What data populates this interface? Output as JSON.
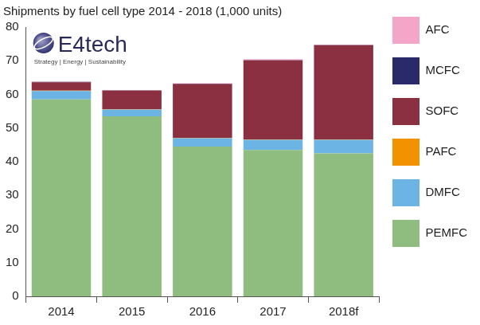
{
  "chart_data": {
    "type": "bar",
    "title": "Shipments by fuel cell type 2014 - 2018 (1,000 units)",
    "annotations": [
      "E4tech",
      "Strategy | Energy | Sustainability"
    ],
    "categories": [
      "2014",
      "2015",
      "2016",
      "2017",
      "2018f"
    ],
    "series": [
      {
        "name": "PEMFC",
        "color": "#8fbc7f",
        "values": [
          58.5,
          53.5,
          44.5,
          43.5,
          42.5
        ]
      },
      {
        "name": "DMFC",
        "color": "#6cb4e4",
        "values": [
          2.5,
          2,
          2.5,
          3,
          4
        ]
      },
      {
        "name": "PAFC",
        "color": "#f39200",
        "values": [
          0.1,
          0.1,
          0.1,
          0.1,
          0.1
        ]
      },
      {
        "name": "SOFC",
        "color": "#8b3040",
        "values": [
          2.5,
          5.5,
          16,
          23.5,
          28
        ]
      },
      {
        "name": "MCFC",
        "color": "#2a2a6a",
        "values": [
          0.1,
          0.1,
          0.1,
          0.1,
          0.1
        ]
      },
      {
        "name": "AFC",
        "color": "#f4a6c8",
        "values": [
          0.1,
          0.1,
          0.1,
          0.3,
          0.1
        ]
      }
    ],
    "stacked": true,
    "ylim": [
      0,
      80
    ],
    "yticks": [
      0,
      10,
      20,
      30,
      40,
      50,
      60,
      70,
      80
    ],
    "grid": false,
    "legend": "right"
  }
}
